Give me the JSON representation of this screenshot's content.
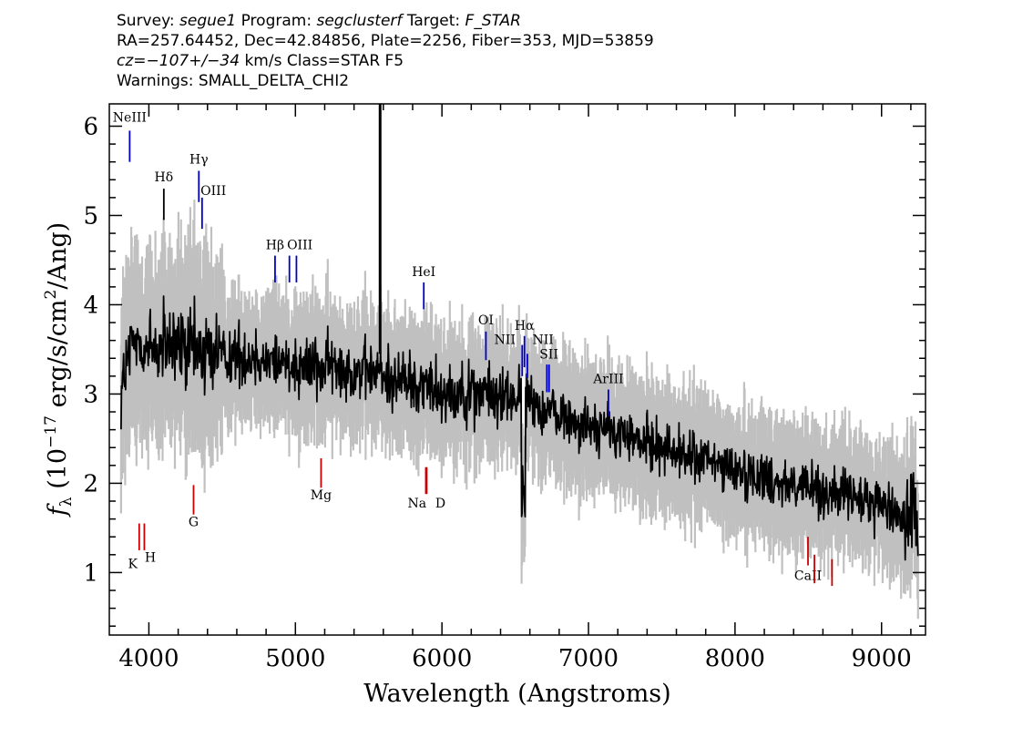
{
  "header": {
    "line1": {
      "survey_label": "Survey:",
      "survey": "segue1",
      "program_label": "Program:",
      "program": "segclusterf",
      "target_label": "Target:",
      "target": "F_STAR"
    },
    "line2": "RA=257.64452, Dec=42.84856, Plate=2256, Fiber=353, MJD=53859",
    "line3": {
      "cz_label": "cz=",
      "cz": "−107+/−34",
      "rest": " km/s Class=STAR F5"
    },
    "line4": "Warnings: SMALL_DELTA_CHI2"
  },
  "colors": {
    "spectrum": "#000000",
    "error_band": "#c0c0c0",
    "emission": "#0000cc",
    "absorption": "#cc0000",
    "emission_dark": "#000000"
  },
  "chart_data": {
    "type": "line",
    "xlabel": "Wavelength (Angstroms)",
    "ylabel_prefix": "f",
    "ylabel_sub": "λ",
    "ylabel_main": " (10",
    "ylabel_exp": "−17",
    "ylabel_units": " erg/s/cm",
    "ylabel_sq": "2",
    "ylabel_end": "/Ang)",
    "xlim": [
      3730,
      9300
    ],
    "ylim": [
      0.3,
      6.25
    ],
    "xticks": [
      4000,
      5000,
      6000,
      7000,
      8000,
      9000
    ],
    "yticks": [
      1,
      2,
      3,
      4,
      5,
      6
    ],
    "grid": false,
    "spike": {
      "x": 5578,
      "y_top": 6.25,
      "y_bottom": 3.45
    },
    "continuum_anchors": [
      [
        3800,
        3.0
      ],
      [
        3900,
        3.6
      ],
      [
        4000,
        3.5
      ],
      [
        4200,
        3.5
      ],
      [
        4500,
        3.45
      ],
      [
        5000,
        3.35
      ],
      [
        5500,
        3.25
      ],
      [
        6000,
        3.05
      ],
      [
        6500,
        2.95
      ],
      [
        7000,
        2.65
      ],
      [
        7500,
        2.4
      ],
      [
        8000,
        2.15
      ],
      [
        8500,
        1.95
      ],
      [
        9000,
        1.75
      ],
      [
        9250,
        1.6
      ]
    ],
    "emission_lines": [
      {
        "label": "NeIII",
        "x": 3869,
        "y_top": 5.95,
        "y_bottom": 5.6,
        "lx": 3869,
        "ly": 6.05
      },
      {
        "label": "Hδ",
        "x": 4102,
        "y_top": 5.3,
        "y_bottom": 4.95,
        "lx": 4102,
        "ly": 5.38,
        "dark": true
      },
      {
        "label": "Hγ",
        "x": 4341,
        "y_top": 5.5,
        "y_bottom": 5.15,
        "lx": 4341,
        "ly": 5.58
      },
      {
        "label": "OIII",
        "x": 4363,
        "y_top": 5.2,
        "y_bottom": 4.85,
        "lx": 4440,
        "ly": 5.23
      },
      {
        "label": "Hβ",
        "x": 4861,
        "y_top": 4.55,
        "y_bottom": 4.25,
        "lx": 4861,
        "ly": 4.62
      },
      {
        "label": "OIII",
        "x": 4959,
        "y_top": 4.55,
        "y_bottom": 4.25,
        "lx": 5030,
        "ly": 4.62
      },
      {
        "label": "OIII",
        "x": 5007,
        "y_top": 4.55,
        "y_bottom": 4.25,
        "lx": null,
        "ly": null
      },
      {
        "label": "HeI",
        "x": 5876,
        "y_top": 4.25,
        "y_bottom": 3.95,
        "lx": 5876,
        "ly": 4.32
      },
      {
        "label": "OI",
        "x": 6300,
        "y_top": 3.7,
        "y_bottom": 3.38,
        "lx": 6300,
        "ly": 3.78
      },
      {
        "label": "NII",
        "x": 6548,
        "y_top": 3.55,
        "y_bottom": 3.2,
        "lx": 6430,
        "ly": 3.56
      },
      {
        "label": "Hα",
        "x": 6563,
        "y_top": 3.65,
        "y_bottom": 3.3,
        "lx": 6563,
        "ly": 3.72
      },
      {
        "label": "NII",
        "x": 6583,
        "y_top": 3.45,
        "y_bottom": 3.18,
        "lx": 6690,
        "ly": 3.56
      },
      {
        "label": "SII",
        "x": 6716,
        "y_top": 3.33,
        "y_bottom": 3.02,
        "lx": 6730,
        "ly": 3.4
      },
      {
        "label": "SII",
        "x": 6731,
        "y_top": 3.33,
        "y_bottom": 3.02,
        "lx": null,
        "ly": null
      },
      {
        "label": "ArIII",
        "x": 7136,
        "y_top": 3.05,
        "y_bottom": 2.75,
        "lx": 7136,
        "ly": 3.12
      }
    ],
    "absorption_lines": [
      {
        "label": "K",
        "x": 3934,
        "y_top": 1.55,
        "y_bottom": 1.25,
        "lx": 3890,
        "ly": 1.05
      },
      {
        "label": "H",
        "x": 3969,
        "y_top": 1.55,
        "y_bottom": 1.25,
        "lx": 4010,
        "ly": 1.12
      },
      {
        "label": "G",
        "x": 4305,
        "y_top": 1.98,
        "y_bottom": 1.65,
        "lx": 4305,
        "ly": 1.52
      },
      {
        "label": "Mg",
        "x": 5175,
        "y_top": 2.28,
        "y_bottom": 1.95,
        "lx": 5175,
        "ly": 1.82
      },
      {
        "label": "Na",
        "x": 5890,
        "y_top": 2.18,
        "y_bottom": 1.88,
        "lx": 5830,
        "ly": 1.73
      },
      {
        "label": "D",
        "x": 5896,
        "y_top": 2.18,
        "y_bottom": 1.88,
        "lx": 5990,
        "ly": 1.73
      },
      {
        "label": "CaII",
        "x": 8498,
        "y_top": 1.4,
        "y_bottom": 1.08,
        "lx": 8498,
        "ly": 0.92
      },
      {
        "label": "",
        "x": 8542,
        "y_top": 1.2,
        "y_bottom": 0.88,
        "lx": null,
        "ly": null
      },
      {
        "label": "",
        "x": 8662,
        "y_top": 1.15,
        "y_bottom": 0.85,
        "lx": null,
        "ly": null
      }
    ]
  }
}
